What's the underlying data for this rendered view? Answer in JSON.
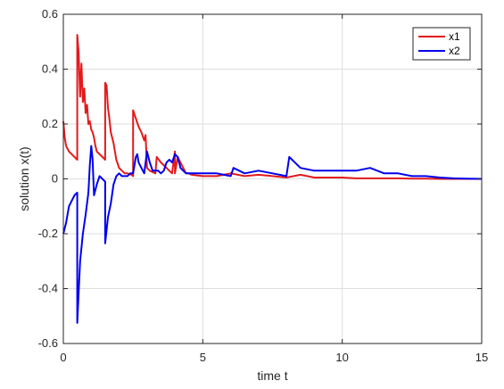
{
  "chart_data": {
    "type": "line",
    "title": "",
    "xlabel": "time t",
    "ylabel": "solution x(t)",
    "xlim": [
      0,
      15
    ],
    "ylim": [
      -0.6,
      0.6
    ],
    "xticks": [
      0,
      5,
      10,
      15
    ],
    "yticks": [
      -0.6,
      -0.4,
      -0.2,
      0,
      0.2,
      0.4,
      0.6
    ],
    "xtick_labels": [
      "0",
      "5",
      "10",
      "15"
    ],
    "ytick_labels": [
      "-0.6",
      "-0.4",
      "-0.2",
      "0",
      "0.2",
      "0.4",
      "0.6"
    ],
    "grid": true,
    "legend_position": "top-right",
    "series": [
      {
        "name": "x1",
        "color": "#e31a1c",
        "x": [
          0,
          0.05,
          0.1,
          0.2,
          0.3,
          0.4,
          0.5,
          0.5,
          0.55,
          0.6,
          0.65,
          0.7,
          0.75,
          0.8,
          0.85,
          0.9,
          0.95,
          1.0,
          1.05,
          1.1,
          1.15,
          1.2,
          1.3,
          1.4,
          1.5,
          1.5,
          1.55,
          1.6,
          1.65,
          1.7,
          1.8,
          1.9,
          2.0,
          2.1,
          2.2,
          2.3,
          2.45,
          2.5,
          2.5,
          2.6,
          2.7,
          2.8,
          2.9,
          2.95,
          3.0,
          3.1,
          3.2,
          3.3,
          3.35,
          3.5,
          3.6,
          3.7,
          3.8,
          3.9,
          4.0,
          4.0,
          4.1,
          4.2,
          4.3,
          4.4,
          4.5,
          4.6,
          5.0,
          5.5,
          6.0,
          6.5,
          7.0,
          7.5,
          8.0,
          8.5,
          9.0,
          9.5,
          10.0,
          10.5,
          11.0,
          11.5,
          12.0,
          12.5,
          13.0,
          13.5,
          14.0,
          14.5,
          15.0
        ],
        "y": [
          0.21,
          0.15,
          0.12,
          0.1,
          0.09,
          0.08,
          0.07,
          0.525,
          0.46,
          0.3,
          0.42,
          0.28,
          0.33,
          0.24,
          0.27,
          0.2,
          0.21,
          0.18,
          0.17,
          0.15,
          0.12,
          0.1,
          0.09,
          0.08,
          0.07,
          0.35,
          0.34,
          0.26,
          0.22,
          0.17,
          0.13,
          0.07,
          0.04,
          0.03,
          0.02,
          0.02,
          0.015,
          0.01,
          0.25,
          0.22,
          0.19,
          0.17,
          0.14,
          0.16,
          0.04,
          0.03,
          0.025,
          0.02,
          0.08,
          0.06,
          0.05,
          0.04,
          0.03,
          0.02,
          0.1,
          0.02,
          0.08,
          0.06,
          0.04,
          0.02,
          0.02,
          0.015,
          0.01,
          0.01,
          0.02,
          0.01,
          0.015,
          0.01,
          0.005,
          0.015,
          0.005,
          0.005,
          0.005,
          0.002,
          0.002,
          0.002,
          0.002,
          0.001,
          0.001,
          0.0,
          0.0,
          0.0,
          0.0
        ]
      },
      {
        "name": "x2",
        "color": "#0000ee",
        "x": [
          0,
          0.1,
          0.2,
          0.3,
          0.4,
          0.5,
          0.5,
          0.6,
          0.7,
          0.8,
          0.9,
          0.95,
          1.0,
          1.05,
          1.1,
          1.2,
          1.3,
          1.4,
          1.5,
          1.5,
          1.6,
          1.7,
          1.8,
          1.9,
          2.0,
          2.1,
          2.2,
          2.3,
          2.4,
          2.5,
          2.6,
          2.65,
          2.7,
          2.8,
          2.9,
          3.0,
          3.1,
          3.2,
          3.3,
          3.4,
          3.5,
          3.6,
          3.7,
          3.8,
          3.9,
          4.0,
          4.1,
          4.2,
          4.3,
          4.4,
          4.5,
          4.6,
          5.0,
          5.5,
          6.0,
          6.1,
          6.5,
          7.0,
          7.5,
          8.0,
          8.1,
          8.2,
          8.5,
          9.0,
          9.5,
          10.0,
          10.5,
          11.0,
          11.5,
          12.0,
          12.5,
          13.0,
          13.5,
          14.0,
          14.5,
          15.0
        ],
        "y": [
          -0.2,
          -0.16,
          -0.1,
          -0.08,
          -0.06,
          -0.05,
          -0.525,
          -0.3,
          -0.2,
          -0.13,
          -0.05,
          0.05,
          0.12,
          0.07,
          -0.06,
          -0.02,
          0.01,
          0.0,
          -0.01,
          -0.235,
          -0.14,
          -0.09,
          -0.02,
          0.01,
          0.02,
          0.01,
          0.01,
          0.01,
          0.02,
          0.02,
          0.08,
          0.09,
          0.06,
          0.04,
          0.02,
          0.1,
          0.06,
          0.03,
          0.03,
          0.03,
          0.02,
          0.03,
          0.06,
          0.07,
          0.06,
          0.09,
          0.08,
          0.04,
          0.03,
          0.02,
          0.02,
          0.02,
          0.02,
          0.02,
          0.01,
          0.04,
          0.02,
          0.03,
          0.02,
          0.01,
          0.08,
          0.07,
          0.04,
          0.03,
          0.03,
          0.03,
          0.03,
          0.04,
          0.02,
          0.02,
          0.01,
          0.01,
          0.005,
          0.002,
          0.001,
          0.0
        ]
      }
    ]
  }
}
